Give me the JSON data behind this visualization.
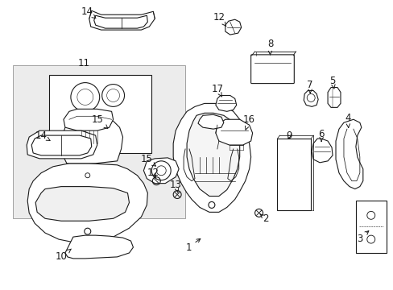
{
  "bg_color": "#ffffff",
  "line_color": "#1a1a1a",
  "fill_light": "#f5f5f5",
  "fill_gray": "#e8e8e8",
  "font_size": 8.5,
  "lw": 0.8,
  "parts": {
    "labels": [
      [
        "14",
        107,
        13,
        123,
        22,
        "right"
      ],
      [
        "12",
        272,
        20,
        282,
        38,
        "right"
      ],
      [
        "8",
        335,
        55,
        335,
        70,
        "center"
      ],
      [
        "17",
        272,
        112,
        278,
        122,
        "right"
      ],
      [
        "7",
        388,
        105,
        386,
        118,
        "center"
      ],
      [
        "5",
        415,
        100,
        413,
        115,
        "center"
      ],
      [
        "11",
        105,
        78,
        105,
        83,
        "center"
      ],
      [
        "15",
        118,
        148,
        128,
        158,
        "right"
      ],
      [
        "14",
        50,
        168,
        63,
        178,
        "right"
      ],
      [
        "15",
        185,
        198,
        182,
        205,
        "right"
      ],
      [
        "16",
        310,
        148,
        305,
        158,
        "right"
      ],
      [
        "9",
        362,
        170,
        355,
        178,
        "right"
      ],
      [
        "6",
        400,
        168,
        395,
        178,
        "right"
      ],
      [
        "4",
        435,
        148,
        430,
        165,
        "center"
      ],
      [
        "12",
        192,
        215,
        196,
        222,
        "right"
      ],
      [
        "13",
        218,
        230,
        220,
        238,
        "right"
      ],
      [
        "2",
        330,
        272,
        323,
        268,
        "right"
      ],
      [
        "1",
        235,
        308,
        235,
        298,
        "center"
      ],
      [
        "10",
        75,
        318,
        85,
        308,
        "center"
      ],
      [
        "3",
        448,
        295,
        448,
        285,
        "center"
      ]
    ]
  }
}
